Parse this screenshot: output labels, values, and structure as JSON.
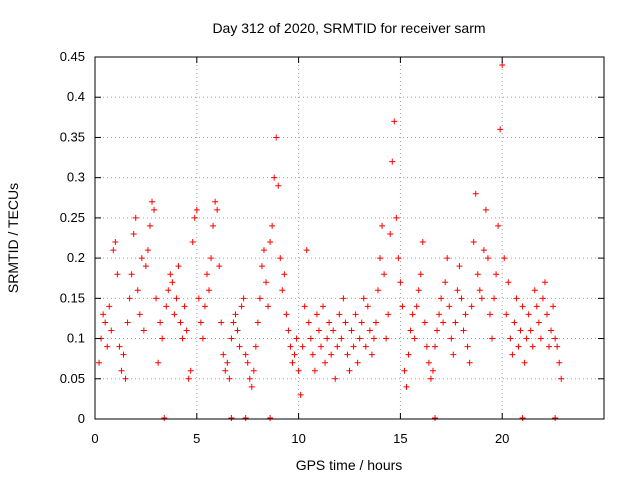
{
  "chart_data": {
    "type": "scatter",
    "title": "Day 312 of 2020, SRMTID for receiver sarm",
    "xlabel": "GPS time / hours",
    "ylabel": "SRMTID / TECUs",
    "xlim": [
      0,
      25
    ],
    "ylim": [
      0,
      0.45
    ],
    "x_ticks": [
      0,
      5,
      10,
      15,
      20
    ],
    "x_tick_labels": [
      "0",
      "5",
      "10",
      "15",
      "20"
    ],
    "y_ticks": [
      0,
      0.05,
      0.1,
      0.15,
      0.2,
      0.25,
      0.3,
      0.35,
      0.4,
      0.45
    ],
    "y_tick_labels": [
      "0",
      "0.05",
      "0.1",
      "0.15",
      "0.2",
      "0.25",
      "0.3",
      "0.35",
      "0.4",
      "0.45"
    ],
    "grid": true,
    "marker": "+",
    "color": "#ff0000",
    "series": [
      {
        "name": "SRMTID",
        "points": [
          [
            0.2,
            0.07
          ],
          [
            0.3,
            0.1
          ],
          [
            0.4,
            0.13
          ],
          [
            0.5,
            0.12
          ],
          [
            0.6,
            0.09
          ],
          [
            0.7,
            0.14
          ],
          [
            0.8,
            0.11
          ],
          [
            0.9,
            0.21
          ],
          [
            1.0,
            0.22
          ],
          [
            1.1,
            0.18
          ],
          [
            1.2,
            0.09
          ],
          [
            1.3,
            0.06
          ],
          [
            1.4,
            0.08
          ],
          [
            1.5,
            0.05
          ],
          [
            1.6,
            0.12
          ],
          [
            1.7,
            0.15
          ],
          [
            1.8,
            0.18
          ],
          [
            1.9,
            0.23
          ],
          [
            2.0,
            0.25
          ],
          [
            2.1,
            0.16
          ],
          [
            2.2,
            0.13
          ],
          [
            2.3,
            0.2
          ],
          [
            2.4,
            0.11
          ],
          [
            2.5,
            0.19
          ],
          [
            2.6,
            0.21
          ],
          [
            2.7,
            0.24
          ],
          [
            2.8,
            0.27
          ],
          [
            2.9,
            0.26
          ],
          [
            3.0,
            0.15
          ],
          [
            3.1,
            0.07
          ],
          [
            3.2,
            0.12
          ],
          [
            3.3,
            0.1
          ],
          [
            3.5,
            0.14
          ],
          [
            3.6,
            0.16
          ],
          [
            3.7,
            0.18
          ],
          [
            3.8,
            0.17
          ],
          [
            3.9,
            0.13
          ],
          [
            4.0,
            0.15
          ],
          [
            4.1,
            0.19
          ],
          [
            4.2,
            0.12
          ],
          [
            4.3,
            0.1
          ],
          [
            4.4,
            0.14
          ],
          [
            4.5,
            0.11
          ],
          [
            4.6,
            0.05
          ],
          [
            4.7,
            0.06
          ],
          [
            4.8,
            0.22
          ],
          [
            4.9,
            0.25
          ],
          [
            5.0,
            0.26
          ],
          [
            5.1,
            0.15
          ],
          [
            5.2,
            0.12
          ],
          [
            5.3,
            0.1
          ],
          [
            5.4,
            0.14
          ],
          [
            5.5,
            0.18
          ],
          [
            5.6,
            0.16
          ],
          [
            5.7,
            0.2
          ],
          [
            5.8,
            0.24
          ],
          [
            5.9,
            0.27
          ],
          [
            6.0,
            0.26
          ],
          [
            6.1,
            0.19
          ],
          [
            6.2,
            0.12
          ],
          [
            6.3,
            0.08
          ],
          [
            6.4,
            0.06
          ],
          [
            6.5,
            0.07
          ],
          [
            6.6,
            0.05
          ],
          [
            6.7,
            0.1
          ],
          [
            6.8,
            0.12
          ],
          [
            6.9,
            0.13
          ],
          [
            7.0,
            0.11
          ],
          [
            7.1,
            0.09
          ],
          [
            7.2,
            0.14
          ],
          [
            7.3,
            0.15
          ],
          [
            7.4,
            0.08
          ],
          [
            7.5,
            0.07
          ],
          [
            7.6,
            0.05
          ],
          [
            7.7,
            0.04
          ],
          [
            7.8,
            0.06
          ],
          [
            7.9,
            0.09
          ],
          [
            8.0,
            0.12
          ],
          [
            8.1,
            0.15
          ],
          [
            8.2,
            0.19
          ],
          [
            8.3,
            0.21
          ],
          [
            8.4,
            0.17
          ],
          [
            8.5,
            0.14
          ],
          [
            8.6,
            0.22
          ],
          [
            8.7,
            0.24
          ],
          [
            8.8,
            0.3
          ],
          [
            8.9,
            0.35
          ],
          [
            9.0,
            0.29
          ],
          [
            9.1,
            0.2
          ],
          [
            9.2,
            0.16
          ],
          [
            9.3,
            0.18
          ],
          [
            9.4,
            0.13
          ],
          [
            9.5,
            0.11
          ],
          [
            9.6,
            0.09
          ],
          [
            9.7,
            0.07
          ],
          [
            9.8,
            0.08
          ],
          [
            9.9,
            0.1
          ],
          [
            10.0,
            0.06
          ],
          [
            10.1,
            0.03
          ],
          [
            10.2,
            0.09
          ],
          [
            10.3,
            0.14
          ],
          [
            10.4,
            0.21
          ],
          [
            10.5,
            0.12
          ],
          [
            10.6,
            0.1
          ],
          [
            10.7,
            0.08
          ],
          [
            10.8,
            0.06
          ],
          [
            10.9,
            0.13
          ],
          [
            11.0,
            0.11
          ],
          [
            11.1,
            0.09
          ],
          [
            11.2,
            0.14
          ],
          [
            11.3,
            0.07
          ],
          [
            11.4,
            0.1
          ],
          [
            11.5,
            0.12
          ],
          [
            11.6,
            0.08
          ],
          [
            11.7,
            0.11
          ],
          [
            11.8,
            0.05
          ],
          [
            11.9,
            0.09
          ],
          [
            12.0,
            0.13
          ],
          [
            12.1,
            0.1
          ],
          [
            12.2,
            0.15
          ],
          [
            12.3,
            0.12
          ],
          [
            12.4,
            0.08
          ],
          [
            12.5,
            0.06
          ],
          [
            12.6,
            0.11
          ],
          [
            12.7,
            0.09
          ],
          [
            12.8,
            0.13
          ],
          [
            12.9,
            0.07
          ],
          [
            13.0,
            0.1
          ],
          [
            13.1,
            0.12
          ],
          [
            13.2,
            0.15
          ],
          [
            13.3,
            0.09
          ],
          [
            13.4,
            0.14
          ],
          [
            13.5,
            0.11
          ],
          [
            13.6,
            0.08
          ],
          [
            13.7,
            0.1
          ],
          [
            13.8,
            0.12
          ],
          [
            13.9,
            0.16
          ],
          [
            14.0,
            0.2
          ],
          [
            14.1,
            0.24
          ],
          [
            14.2,
            0.18
          ],
          [
            14.3,
            0.1
          ],
          [
            14.4,
            0.13
          ],
          [
            14.5,
            0.23
          ],
          [
            14.6,
            0.32
          ],
          [
            14.7,
            0.37
          ],
          [
            14.8,
            0.25
          ],
          [
            14.9,
            0.2
          ],
          [
            15.0,
            0.17
          ],
          [
            15.1,
            0.14
          ],
          [
            15.2,
            0.06
          ],
          [
            15.3,
            0.04
          ],
          [
            15.4,
            0.08
          ],
          [
            15.5,
            0.11
          ],
          [
            15.6,
            0.13
          ],
          [
            15.7,
            0.1
          ],
          [
            15.8,
            0.14
          ],
          [
            15.9,
            0.16
          ],
          [
            16.0,
            0.18
          ],
          [
            16.1,
            0.22
          ],
          [
            16.2,
            0.12
          ],
          [
            16.3,
            0.09
          ],
          [
            16.4,
            0.07
          ],
          [
            16.5,
            0.05
          ],
          [
            16.6,
            0.06
          ],
          [
            16.7,
            0.09
          ],
          [
            16.8,
            0.11
          ],
          [
            16.9,
            0.13
          ],
          [
            17.0,
            0.15
          ],
          [
            17.1,
            0.12
          ],
          [
            17.2,
            0.17
          ],
          [
            17.3,
            0.2
          ],
          [
            17.4,
            0.14
          ],
          [
            17.5,
            0.1
          ],
          [
            17.6,
            0.08
          ],
          [
            17.7,
            0.12
          ],
          [
            17.8,
            0.16
          ],
          [
            17.9,
            0.19
          ],
          [
            18.0,
            0.15
          ],
          [
            18.1,
            0.11
          ],
          [
            18.2,
            0.13
          ],
          [
            18.3,
            0.09
          ],
          [
            18.4,
            0.07
          ],
          [
            18.5,
            0.14
          ],
          [
            18.6,
            0.22
          ],
          [
            18.7,
            0.28
          ],
          [
            18.8,
            0.18
          ],
          [
            18.9,
            0.16
          ],
          [
            19.0,
            0.15
          ],
          [
            19.1,
            0.21
          ],
          [
            19.2,
            0.26
          ],
          [
            19.3,
            0.2
          ],
          [
            19.4,
            0.13
          ],
          [
            19.5,
            0.1
          ],
          [
            19.6,
            0.15
          ],
          [
            19.7,
            0.18
          ],
          [
            19.8,
            0.24
          ],
          [
            19.9,
            0.36
          ],
          [
            20.0,
            0.44
          ],
          [
            20.1,
            0.2
          ],
          [
            20.2,
            0.13
          ],
          [
            20.3,
            0.17
          ],
          [
            20.4,
            0.1
          ],
          [
            20.5,
            0.08
          ],
          [
            20.6,
            0.12
          ],
          [
            20.7,
            0.15
          ],
          [
            20.8,
            0.09
          ],
          [
            20.9,
            0.11
          ],
          [
            21.0,
            0.14
          ],
          [
            21.1,
            0.07
          ],
          [
            21.2,
            0.1
          ],
          [
            21.3,
            0.13
          ],
          [
            21.4,
            0.11
          ],
          [
            21.5,
            0.09
          ],
          [
            21.6,
            0.16
          ],
          [
            21.7,
            0.14
          ],
          [
            21.8,
            0.12
          ],
          [
            21.9,
            0.1
          ],
          [
            22.0,
            0.15
          ],
          [
            22.1,
            0.17
          ],
          [
            22.2,
            0.13
          ],
          [
            22.3,
            0.09
          ],
          [
            22.4,
            0.11
          ],
          [
            22.5,
            0.14
          ],
          [
            22.6,
            0.1
          ],
          [
            22.7,
            0.09
          ],
          [
            22.8,
            0.07
          ],
          [
            22.9,
            0.05
          ],
          [
            3.4,
            0.0
          ],
          [
            6.7,
            0.0
          ],
          [
            7.4,
            0.0
          ],
          [
            8.6,
            0.0
          ],
          [
            16.7,
            0.0
          ],
          [
            21.0,
            0.0
          ],
          [
            22.6,
            0.0
          ]
        ]
      }
    ]
  }
}
